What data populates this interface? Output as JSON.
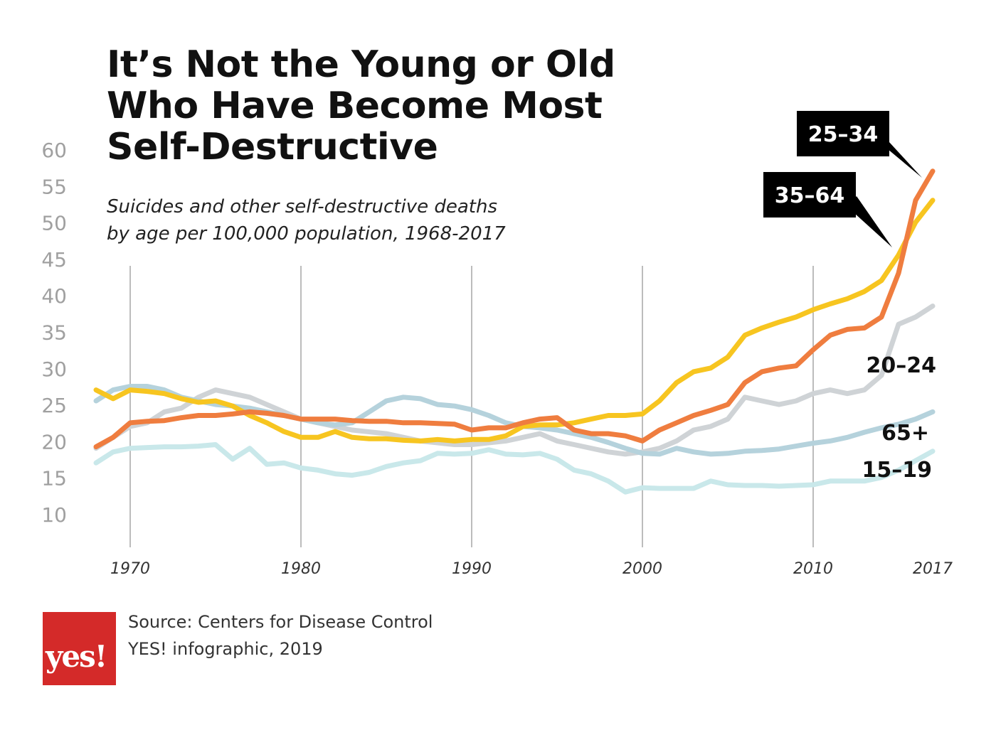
{
  "header": {
    "title_lines": [
      "It’s Not the Young or Old",
      "Who Have Become Most",
      "Self-Destructive"
    ],
    "subtitle_lines": [
      "Suicides and other self-destructive deaths",
      "by age per 100,000 population, 1968-2017"
    ]
  },
  "footer": {
    "logo_text": "yes!",
    "source_lines": [
      "Source: Centers for Disease Control",
      "YES! infographic, 2019"
    ]
  },
  "chart_data": {
    "type": "line",
    "title": "It’s Not the Young or Old Who Have Become Most Self-Destructive",
    "subtitle": "Suicides and other self-destructive deaths by age per 100,000 population, 1968-2017",
    "xlim": [
      1968,
      2017
    ],
    "ylim": [
      10,
      60
    ],
    "y_ticks": [
      10,
      15,
      20,
      25,
      30,
      35,
      40,
      45,
      50,
      55,
      60
    ],
    "x_ticks": [
      1970,
      1980,
      1990,
      2000,
      2010,
      2017
    ],
    "grid": "vertical lines at 1970, 1980, 1990, 2000, 2010",
    "legend": "direct labels at right end of lines",
    "series": [
      {
        "name": "20–24",
        "color": "#cfd3d6",
        "points": [
          [
            1968,
            19
          ],
          [
            1970,
            22
          ],
          [
            1971,
            22.5
          ],
          [
            1972,
            24
          ],
          [
            1973,
            24.5
          ],
          [
            1974,
            26
          ],
          [
            1975,
            27
          ],
          [
            1976,
            26.5
          ],
          [
            1977,
            26
          ],
          [
            1978,
            25
          ],
          [
            1979,
            24
          ],
          [
            1980,
            23
          ],
          [
            1981,
            22.5
          ],
          [
            1982,
            22
          ],
          [
            1983,
            21.5
          ],
          [
            1985,
            21
          ],
          [
            1987,
            20
          ],
          [
            1989,
            19.5
          ],
          [
            1990,
            19.5
          ],
          [
            1992,
            20
          ],
          [
            1993,
            20.5
          ],
          [
            1994,
            21
          ],
          [
            1995,
            20
          ],
          [
            1996,
            19.5
          ],
          [
            1998,
            18.5
          ],
          [
            1999,
            18.2
          ],
          [
            2000,
            18.5
          ],
          [
            2001,
            19
          ],
          [
            2002,
            20
          ],
          [
            2003,
            21.5
          ],
          [
            2004,
            22
          ],
          [
            2005,
            23
          ],
          [
            2006,
            26
          ],
          [
            2007,
            25.5
          ],
          [
            2008,
            25
          ],
          [
            2009,
            25.5
          ],
          [
            2010,
            26.5
          ],
          [
            2011,
            27
          ],
          [
            2012,
            26.5
          ],
          [
            2013,
            27
          ],
          [
            2014,
            29
          ],
          [
            2015,
            36
          ],
          [
            2016,
            37
          ],
          [
            2017,
            38.5
          ]
        ]
      },
      {
        "name": "65+",
        "color": "#b5d2dc",
        "points": [
          [
            1968,
            25.5
          ],
          [
            1969,
            27
          ],
          [
            1970,
            27.5
          ],
          [
            1971,
            27.5
          ],
          [
            1972,
            27
          ],
          [
            1973,
            26
          ],
          [
            1974,
            25.5
          ],
          [
            1975,
            25
          ],
          [
            1976,
            24.8
          ],
          [
            1977,
            24.5
          ],
          [
            1978,
            24
          ],
          [
            1979,
            23.5
          ],
          [
            1980,
            23
          ],
          [
            1981,
            22.5
          ],
          [
            1982,
            22.2
          ],
          [
            1983,
            22.5
          ],
          [
            1984,
            24
          ],
          [
            1985,
            25.5
          ],
          [
            1986,
            26
          ],
          [
            1987,
            25.8
          ],
          [
            1988,
            25
          ],
          [
            1989,
            24.8
          ],
          [
            1990,
            24.3
          ],
          [
            1991,
            23.5
          ],
          [
            1992,
            22.5
          ],
          [
            1993,
            22
          ],
          [
            1994,
            21.8
          ],
          [
            1995,
            21.5
          ],
          [
            1996,
            21
          ],
          [
            1997,
            20.5
          ],
          [
            1998,
            19.8
          ],
          [
            1999,
            19
          ],
          [
            2000,
            18.3
          ],
          [
            2001,
            18.2
          ],
          [
            2002,
            19
          ],
          [
            2003,
            18.5
          ],
          [
            2004,
            18.2
          ],
          [
            2005,
            18.3
          ],
          [
            2006,
            18.6
          ],
          [
            2007,
            18.7
          ],
          [
            2008,
            18.9
          ],
          [
            2009,
            19.3
          ],
          [
            2010,
            19.7
          ],
          [
            2011,
            20
          ],
          [
            2012,
            20.5
          ],
          [
            2013,
            21.2
          ],
          [
            2014,
            21.8
          ],
          [
            2015,
            22.3
          ],
          [
            2016,
            23
          ],
          [
            2017,
            24
          ]
        ]
      },
      {
        "name": "15–19",
        "color": "#c9e8ea",
        "points": [
          [
            1968,
            17
          ],
          [
            1969,
            18.5
          ],
          [
            1970,
            19
          ],
          [
            1971,
            19.1
          ],
          [
            1972,
            19.2
          ],
          [
            1973,
            19.2
          ],
          [
            1974,
            19.3
          ],
          [
            1975,
            19.5
          ],
          [
            1976,
            17.5
          ],
          [
            1977,
            19
          ],
          [
            1978,
            16.8
          ],
          [
            1979,
            17
          ],
          [
            1980,
            16.3
          ],
          [
            1981,
            16
          ],
          [
            1982,
            15.5
          ],
          [
            1983,
            15.3
          ],
          [
            1984,
            15.7
          ],
          [
            1985,
            16.5
          ],
          [
            1986,
            17
          ],
          [
            1987,
            17.3
          ],
          [
            1988,
            18.3
          ],
          [
            1989,
            18.2
          ],
          [
            1990,
            18.3
          ],
          [
            1991,
            18.8
          ],
          [
            1992,
            18.2
          ],
          [
            1993,
            18.1
          ],
          [
            1994,
            18.3
          ],
          [
            1995,
            17.5
          ],
          [
            1996,
            16
          ],
          [
            1997,
            15.5
          ],
          [
            1998,
            14.5
          ],
          [
            1999,
            13
          ],
          [
            2000,
            13.6
          ],
          [
            2001,
            13.5
          ],
          [
            2002,
            13.5
          ],
          [
            2003,
            13.5
          ],
          [
            2004,
            14.5
          ],
          [
            2005,
            14
          ],
          [
            2006,
            13.9
          ],
          [
            2007,
            13.9
          ],
          [
            2008,
            13.8
          ],
          [
            2009,
            13.9
          ],
          [
            2010,
            14
          ],
          [
            2011,
            14.5
          ],
          [
            2012,
            14.5
          ],
          [
            2013,
            14.5
          ],
          [
            2014,
            15
          ],
          [
            2015,
            16
          ],
          [
            2016,
            17.3
          ],
          [
            2017,
            18.6
          ]
        ]
      },
      {
        "name": "35–64",
        "color": "#f7c520",
        "points": [
          [
            1968,
            27
          ],
          [
            1969,
            25.8
          ],
          [
            1970,
            27
          ],
          [
            1971,
            26.8
          ],
          [
            1972,
            26.5
          ],
          [
            1973,
            25.8
          ],
          [
            1974,
            25.3
          ],
          [
            1975,
            25.5
          ],
          [
            1976,
            24.8
          ],
          [
            1977,
            23.5
          ],
          [
            1978,
            22.5
          ],
          [
            1979,
            21.3
          ],
          [
            1980,
            20.5
          ],
          [
            1981,
            20.5
          ],
          [
            1982,
            21.3
          ],
          [
            1983,
            20.5
          ],
          [
            1984,
            20.3
          ],
          [
            1985,
            20.3
          ],
          [
            1986,
            20.1
          ],
          [
            1987,
            20
          ],
          [
            1988,
            20.2
          ],
          [
            1989,
            20
          ],
          [
            1990,
            20.2
          ],
          [
            1991,
            20.2
          ],
          [
            1992,
            20.7
          ],
          [
            1993,
            22
          ],
          [
            1994,
            22.2
          ],
          [
            1995,
            22.2
          ],
          [
            1996,
            22.5
          ],
          [
            1997,
            23
          ],
          [
            1998,
            23.5
          ],
          [
            1999,
            23.5
          ],
          [
            2000,
            23.7
          ],
          [
            2001,
            25.5
          ],
          [
            2002,
            28
          ],
          [
            2003,
            29.5
          ],
          [
            2004,
            30
          ],
          [
            2005,
            31.5
          ],
          [
            2006,
            34.5
          ],
          [
            2007,
            35.5
          ],
          [
            2008,
            36.3
          ],
          [
            2009,
            37
          ],
          [
            2010,
            38
          ],
          [
            2011,
            38.8
          ],
          [
            2012,
            39.5
          ],
          [
            2013,
            40.5
          ],
          [
            2014,
            42
          ],
          [
            2015,
            45.5
          ],
          [
            2016,
            50
          ],
          [
            2017,
            53
          ]
        ]
      },
      {
        "name": "25–34",
        "color": "#ef7d3f",
        "points": [
          [
            1968,
            19.2
          ],
          [
            1969,
            20.5
          ],
          [
            1970,
            22.5
          ],
          [
            1971,
            22.7
          ],
          [
            1972,
            22.8
          ],
          [
            1973,
            23.2
          ],
          [
            1974,
            23.5
          ],
          [
            1975,
            23.5
          ],
          [
            1976,
            23.7
          ],
          [
            1977,
            24
          ],
          [
            1978,
            23.8
          ],
          [
            1979,
            23.5
          ],
          [
            1980,
            23
          ],
          [
            1981,
            23
          ],
          [
            1982,
            23
          ],
          [
            1983,
            22.8
          ],
          [
            1984,
            22.7
          ],
          [
            1985,
            22.7
          ],
          [
            1986,
            22.5
          ],
          [
            1987,
            22.5
          ],
          [
            1988,
            22.4
          ],
          [
            1989,
            22.3
          ],
          [
            1990,
            21.5
          ],
          [
            1991,
            21.8
          ],
          [
            1992,
            21.8
          ],
          [
            1993,
            22.5
          ],
          [
            1994,
            23
          ],
          [
            1995,
            23.2
          ],
          [
            1996,
            21.5
          ],
          [
            1997,
            21
          ],
          [
            1998,
            21
          ],
          [
            1999,
            20.7
          ],
          [
            2000,
            20
          ],
          [
            2001,
            21.5
          ],
          [
            2002,
            22.5
          ],
          [
            2003,
            23.5
          ],
          [
            2004,
            24.2
          ],
          [
            2005,
            25
          ],
          [
            2006,
            28
          ],
          [
            2007,
            29.5
          ],
          [
            2008,
            30
          ],
          [
            2009,
            30.3
          ],
          [
            2010,
            32.5
          ],
          [
            2011,
            34.5
          ],
          [
            2012,
            35.3
          ],
          [
            2013,
            35.5
          ],
          [
            2014,
            37
          ],
          [
            2015,
            43
          ],
          [
            2016,
            53
          ],
          [
            2017,
            57
          ]
        ]
      }
    ]
  },
  "annotations": {
    "label_25_34": "25–34",
    "label_35_64": "35–64",
    "label_20_24": "20–24",
    "label_65": "65+",
    "label_15_19": "15–19"
  },
  "colors": {
    "axis_text": "#a0a0a0",
    "gridline": "#7a7a7a",
    "callout_bg": "#000000",
    "logo_red": "#d42a29"
  }
}
